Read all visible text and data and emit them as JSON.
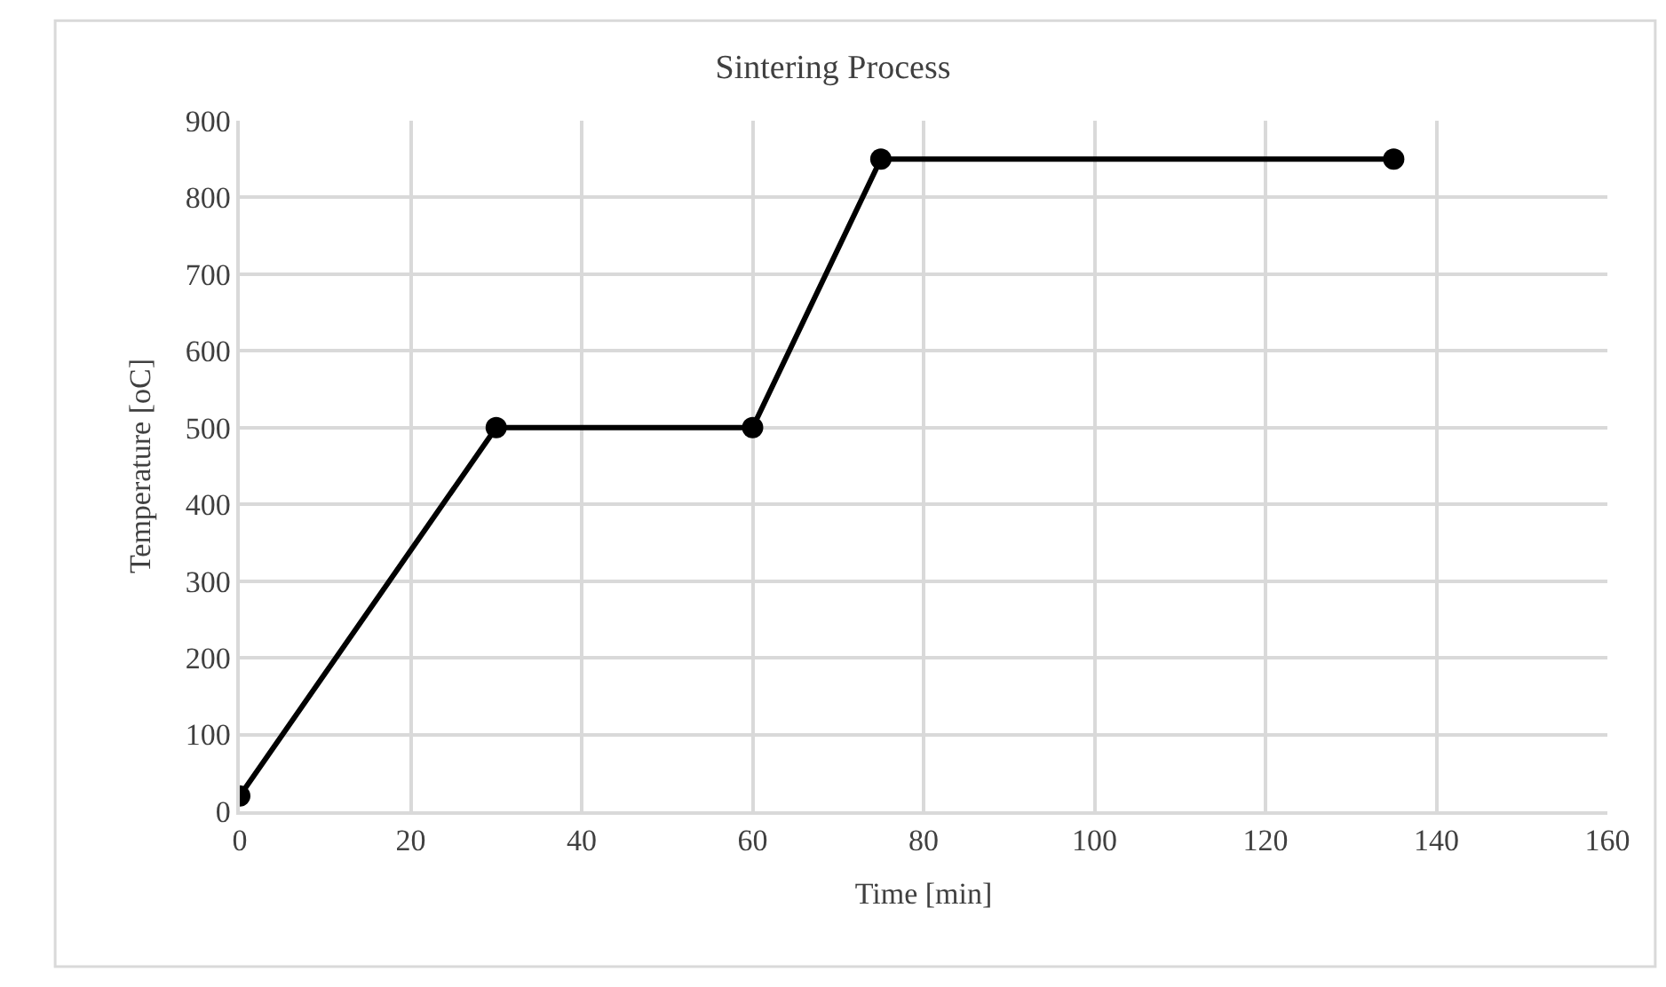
{
  "chart_data": {
    "type": "line",
    "title": "Sintering Process",
    "xlabel": "Time [min]",
    "ylabel": "Temperature [oC]",
    "x": [
      0,
      30,
      60,
      75,
      135
    ],
    "series": [
      {
        "color": "#000000",
        "values": [
          20,
          500,
          500,
          850,
          850
        ]
      }
    ],
    "xlim": [
      0,
      160
    ],
    "xticks": [
      0,
      20,
      40,
      60,
      80,
      100,
      120,
      140,
      160
    ],
    "ylim": [
      0,
      900
    ],
    "yticks": [
      0,
      100,
      200,
      300,
      400,
      500,
      600,
      700,
      800,
      900
    ],
    "grid": true,
    "marker": "circle",
    "line_style": "solid"
  }
}
